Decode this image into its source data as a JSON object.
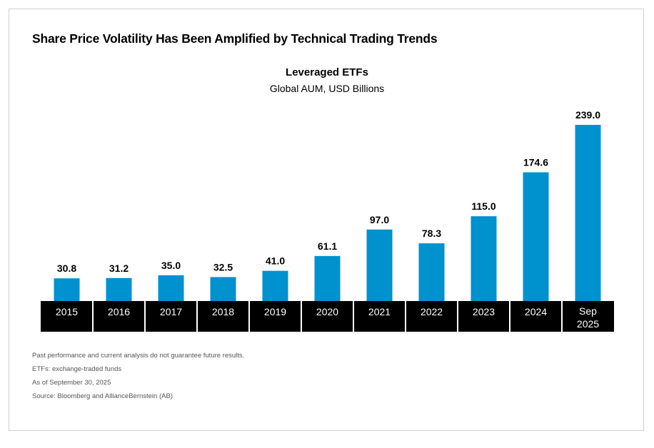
{
  "header": {
    "title": "Share Price Volatility Has Been Amplified by Technical Trading Trends"
  },
  "chart_data": {
    "type": "bar",
    "title": "Leveraged ETFs",
    "subtitle": "Global AUM, USD Billions",
    "categories": [
      "2015",
      "2016",
      "2017",
      "2018",
      "2019",
      "2020",
      "2021",
      "2022",
      "2023",
      "2024",
      "Sep 2025"
    ],
    "values": [
      30.8,
      31.2,
      35.0,
      32.5,
      41.0,
      61.1,
      97.0,
      78.3,
      115.0,
      174.6,
      239.0
    ],
    "value_labels": [
      "30.8",
      "31.2",
      "35.0",
      "32.5",
      "41.0",
      "61.1",
      "97.0",
      "78.3",
      "115.0",
      "174.6",
      "239.0"
    ],
    "ylim": [
      0,
      239.0
    ],
    "grid": false,
    "colors": {
      "bar": "#0091cf",
      "axis_band": "#000000",
      "axis_text": "#ffffff"
    }
  },
  "notes": [
    "Past performance and current analysis do not guarantee future results.",
    "ETFs: exchange-traded funds",
    "As of September 30, 2025",
    "Source: Bloomberg and AllianceBernstein (AB)"
  ]
}
